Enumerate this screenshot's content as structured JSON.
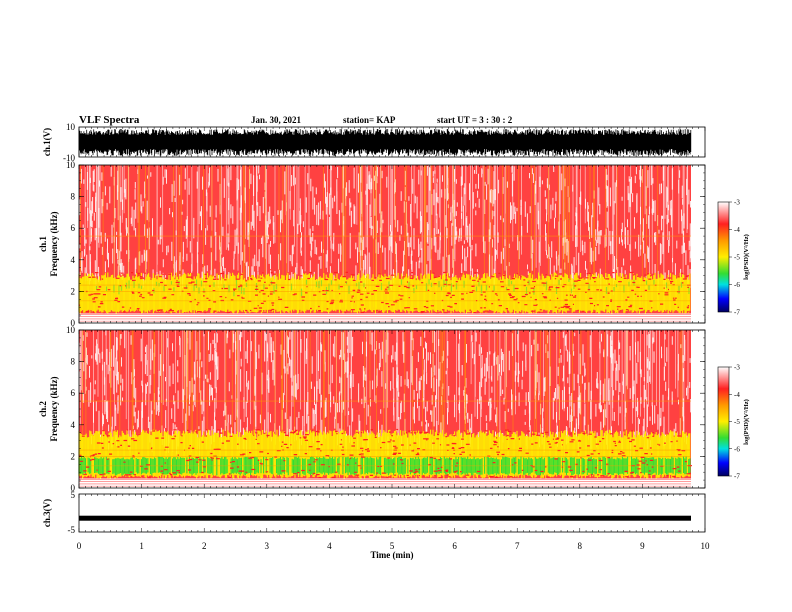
{
  "header": {
    "title": "VLF Spectra",
    "date": "Jan. 30, 2021",
    "station": "station= KAP",
    "start_ut": "start  UT =   3  : 30 : 2"
  },
  "chart_data": [
    {
      "type": "line",
      "panel": "ch1-waveform",
      "ylabel": "ch.1(V)",
      "ylim": [
        -10,
        10
      ],
      "yticks": [
        "10",
        "-10"
      ],
      "xlim": [
        0,
        10
      ],
      "note_visible": "signal saturates between -10 and 10 V"
    },
    {
      "type": "heatmap",
      "panel": "ch1-spectrogram",
      "ylabel_top": "ch.1",
      "ylabel": "Frequency (kHz)",
      "ylim": [
        0,
        10
      ],
      "yticks": [
        "0",
        "2",
        "4",
        "6",
        "8",
        "10"
      ],
      "xlim": [
        0,
        10
      ],
      "colorbar": {
        "label": "log(PSD)(V²/Hz)",
        "range": [
          -7,
          -3
        ],
        "ticks": [
          "-3",
          "-4",
          "-5",
          "-6",
          "-7"
        ]
      }
    },
    {
      "type": "heatmap",
      "panel": "ch2-spectrogram",
      "ylabel_top": "ch.2",
      "ylabel": "Frequency (kHz)",
      "ylim": [
        0,
        10
      ],
      "yticks": [
        "0",
        "2",
        "4",
        "6",
        "8",
        "10"
      ],
      "xlim": [
        0,
        10
      ],
      "colorbar": {
        "label": "log(PSD)(V²/Hz)",
        "range": [
          -7,
          -3
        ],
        "ticks": [
          "-3",
          "-4",
          "-5",
          "-6",
          "-7"
        ]
      }
    },
    {
      "type": "line",
      "panel": "ch3-waveform",
      "ylabel": "ch.3(V)",
      "ylim": [
        -5,
        5
      ],
      "yticks": [
        "5",
        "-5"
      ],
      "xlim": [
        0,
        10
      ],
      "xlabel": "Time (min)",
      "xticks": [
        "0",
        "1",
        "2",
        "3",
        "4",
        "5",
        "6",
        "7",
        "8",
        "9",
        "10"
      ],
      "signal_level": -1.5
    }
  ],
  "colors": {
    "white": "#ffffff",
    "red": "#ff2020",
    "orange": "#ff9900",
    "yellow": "#ffee00",
    "green": "#33dd33",
    "cyan": "#00e0e0",
    "blue": "#0000ff",
    "navy": "#000060"
  }
}
